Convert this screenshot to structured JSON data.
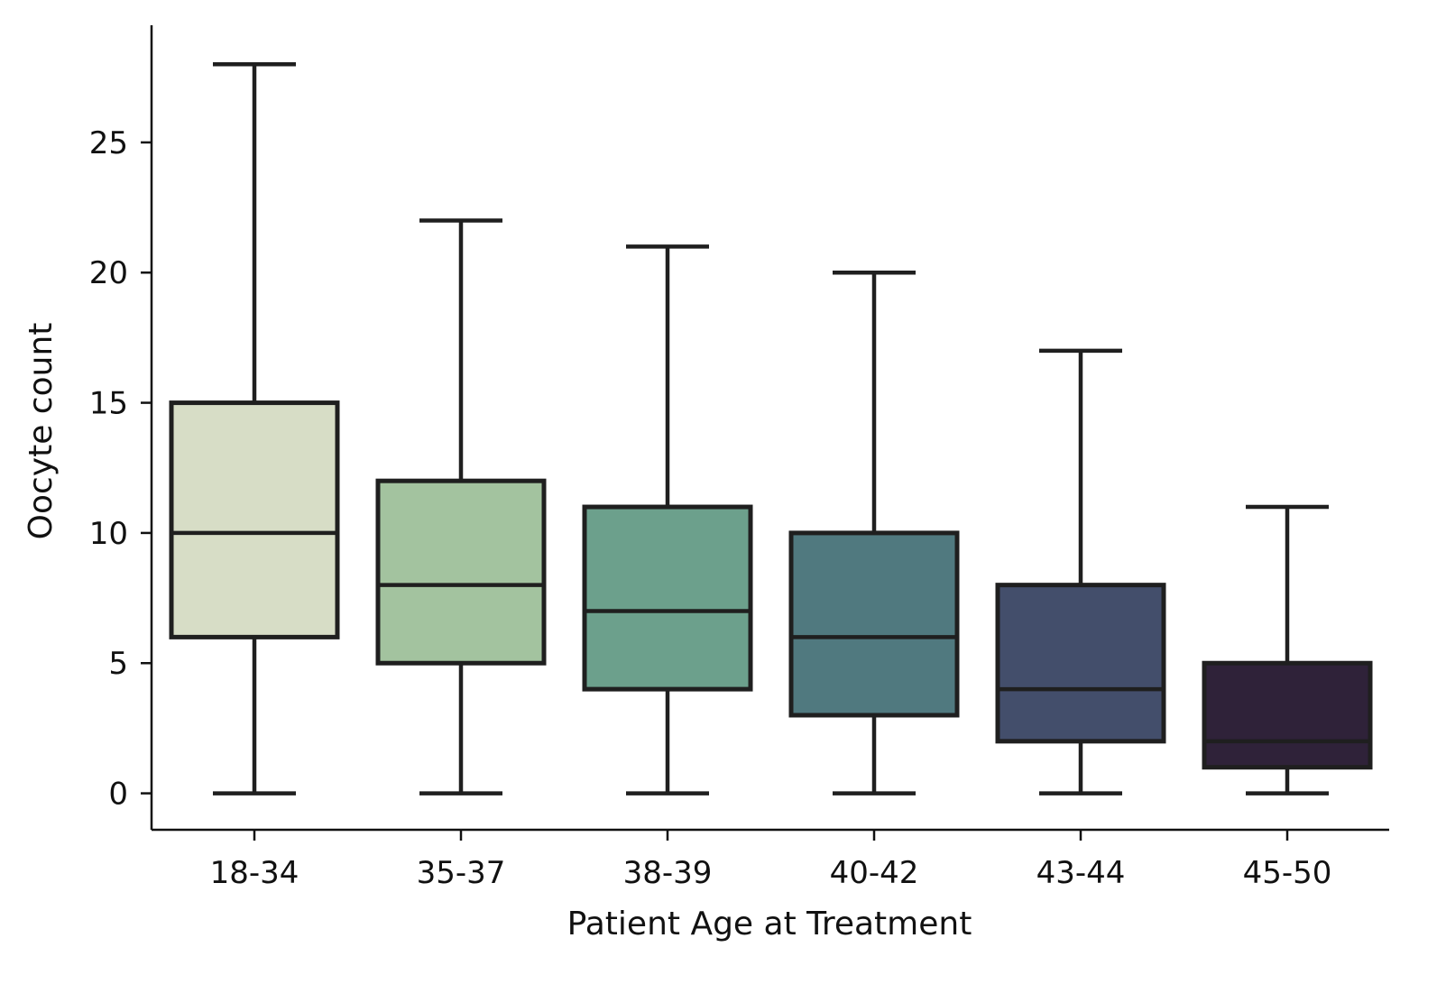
{
  "chart_data": {
    "type": "box",
    "title": "",
    "xlabel": "Patient Age at Treatment",
    "ylabel": "Oocyte count",
    "ylim": [
      -1.4,
      29.5
    ],
    "y_ticks": [
      0,
      5,
      10,
      15,
      20,
      25
    ],
    "y_tick_labels": [
      "0",
      "5",
      "10",
      "15",
      "20",
      "25"
    ],
    "grid": false,
    "categories": [
      "18-34",
      "35-37",
      "38-39",
      "40-42",
      "43-44",
      "45-50"
    ],
    "boxes": [
      {
        "category": "18-34",
        "whisker_low": 0,
        "q1": 6,
        "median": 10,
        "q3": 15,
        "whisker_high": 28,
        "color": "#d7ddc6"
      },
      {
        "category": "35-37",
        "whisker_low": 0,
        "q1": 5,
        "median": 8,
        "q3": 12,
        "whisker_high": 22,
        "color": "#a3c39f"
      },
      {
        "category": "38-39",
        "whisker_low": 0,
        "q1": 4,
        "median": 7,
        "q3": 11,
        "whisker_high": 21,
        "color": "#6ca08c"
      },
      {
        "category": "40-42",
        "whisker_low": 0,
        "q1": 3,
        "median": 6,
        "q3": 10,
        "whisker_high": 20,
        "color": "#50797f"
      },
      {
        "category": "43-44",
        "whisker_low": 0,
        "q1": 2,
        "median": 4,
        "q3": 8,
        "whisker_high": 17,
        "color": "#434e6b"
      },
      {
        "category": "45-50",
        "whisker_low": 0,
        "q1": 1,
        "median": 2,
        "q3": 5,
        "whisker_high": 11,
        "color": "#2f2239"
      }
    ],
    "line_color": "#1f1f1f"
  }
}
